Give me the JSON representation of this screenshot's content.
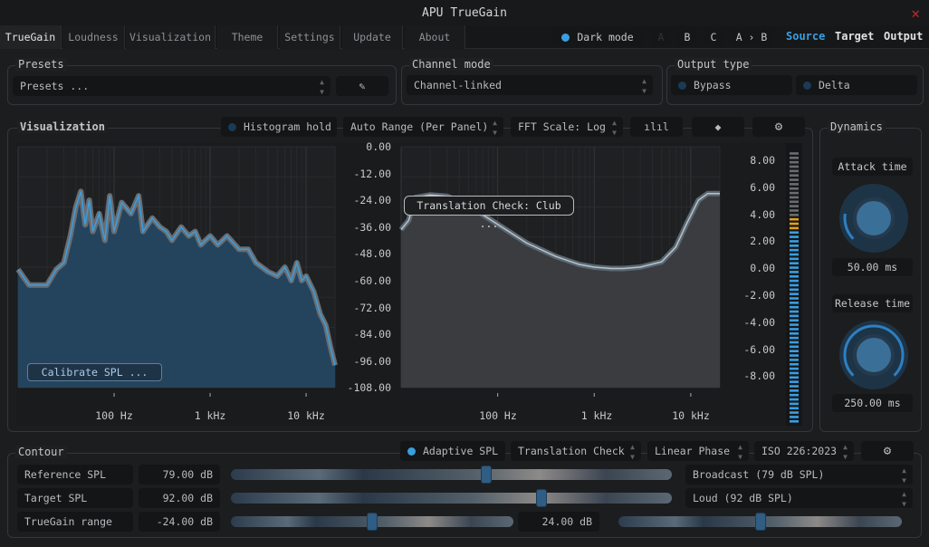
{
  "window": {
    "title": "APU TrueGain",
    "close_icon": "close-x-icon",
    "close_color": "#c0282d"
  },
  "tabs": [
    "TrueGain",
    "Loudness",
    "Visualization",
    "Theme",
    "Settings",
    "Update",
    "About"
  ],
  "active_tab": "TrueGain",
  "header": {
    "dark_mode": "Dark mode",
    "dark_mode_on": true,
    "slots": [
      "A",
      "B",
      "C",
      "A › B"
    ],
    "views": [
      "Source",
      "Target",
      "Output"
    ],
    "active_view": "Source",
    "accent": "#3a9ee0"
  },
  "presets": {
    "label": "Presets",
    "value": "Presets ...",
    "edit_icon": "pencil-icon"
  },
  "channel_mode": {
    "label": "Channel mode",
    "value": "Channel-linked"
  },
  "output_type": {
    "label": "Output type",
    "bypass": "Bypass",
    "delta": "Delta"
  },
  "visualization": {
    "label": "Visualization",
    "histogram_hold": "Histogram hold",
    "range": "Auto Range (Per Panel)",
    "fft_scale": "FFT Scale: Log",
    "icons": [
      "waveform-icon",
      "layers-icon",
      "gear-icon"
    ],
    "calibrate": "Calibrate SPL ...",
    "tooltip": "Translation Check: Club ...",
    "left_axis": [
      "0.00",
      "-12.00",
      "-24.00",
      "-36.00",
      "-48.00",
      "-60.00",
      "-72.00",
      "-84.00",
      "-96.00",
      "-108.00"
    ],
    "right_axis": [
      "8.00",
      "6.00",
      "4.00",
      "2.00",
      "0.00",
      "-2.00",
      "-4.00",
      "-6.00",
      "-8.00"
    ],
    "freq_labels": [
      "100 Hz",
      "1 kHz",
      "10 kHz"
    ]
  },
  "chart_data": [
    {
      "type": "area",
      "xscale": "log",
      "xlim": [
        10,
        20000
      ],
      "ylim": [
        -108,
        0
      ],
      "xticks": [
        "100 Hz",
        "1 kHz",
        "10 kHz"
      ],
      "x": [
        10,
        13,
        16,
        20,
        25,
        30,
        35,
        40,
        45,
        50,
        55,
        60,
        70,
        80,
        90,
        100,
        120,
        150,
        180,
        200,
        250,
        300,
        350,
        400,
        500,
        600,
        700,
        800,
        1000,
        1200,
        1500,
        2000,
        2500,
        3000,
        4000,
        5000,
        6000,
        7000,
        8000,
        9000,
        10000,
        12000,
        14000,
        16000,
        18000,
        20000
      ],
      "y": [
        -55,
        -62,
        -62,
        -62,
        -55,
        -52,
        -40,
        -27,
        -20,
        -35,
        -24,
        -38,
        -30,
        -42,
        -22,
        -38,
        -25,
        -30,
        -22,
        -38,
        -32,
        -36,
        -38,
        -42,
        -36,
        -40,
        -38,
        -44,
        -40,
        -44,
        -40,
        -46,
        -46,
        -52,
        -56,
        -58,
        -54,
        -60,
        -52,
        -60,
        -58,
        -65,
        -75,
        -80,
        -90,
        -98
      ]
    },
    {
      "type": "area",
      "xscale": "log",
      "xlim": [
        10,
        20000
      ],
      "ylim": [
        -9,
        9
      ],
      "xticks": [
        "100 Hz",
        "1 kHz",
        "10 kHz"
      ],
      "x": [
        10,
        12,
        14,
        20,
        30,
        50,
        100,
        200,
        400,
        700,
        1000,
        1500,
        2000,
        3000,
        5000,
        7000,
        9000,
        12000,
        15000,
        20000
      ],
      "y": [
        2.8,
        3.5,
        5.2,
        5.4,
        5.3,
        4.6,
        3.2,
        1.8,
        0.8,
        0.2,
        0,
        -0.1,
        -0.1,
        0,
        0.4,
        1.5,
        3.2,
        5.0,
        5.5,
        5.5
      ]
    }
  ],
  "meter": {
    "level": 0.75,
    "peak_color": "#e0a020",
    "level_color": "#3a9ee0"
  },
  "dynamics": {
    "label": "Dynamics",
    "attack_label": "Attack time",
    "attack_value": "50.00 ms",
    "attack_pct": 0.05,
    "release_label": "Release time",
    "release_value": "250.00 ms",
    "release_pct": 0.25
  },
  "contour": {
    "label": "Contour",
    "adaptive_spl": "Adaptive SPL",
    "translation": "Translation Check",
    "phase": "Linear Phase",
    "iso": "ISO 226:2023",
    "rows": [
      {
        "label": "Reference SPL",
        "value": "79.00 dB",
        "slider_pct": 0.58,
        "preset": "Broadcast (79 dB SPL)"
      },
      {
        "label": "Target SPL",
        "value": "92.00 dB",
        "slider_pct": 0.71,
        "preset": "Loud (92 dB SPL)"
      },
      {
        "label": "TrueGain range",
        "value": "-24.00 dB",
        "slider_pct": 0.5,
        "value2": "24.00 dB",
        "slider2_pct": 0.5
      }
    ]
  }
}
